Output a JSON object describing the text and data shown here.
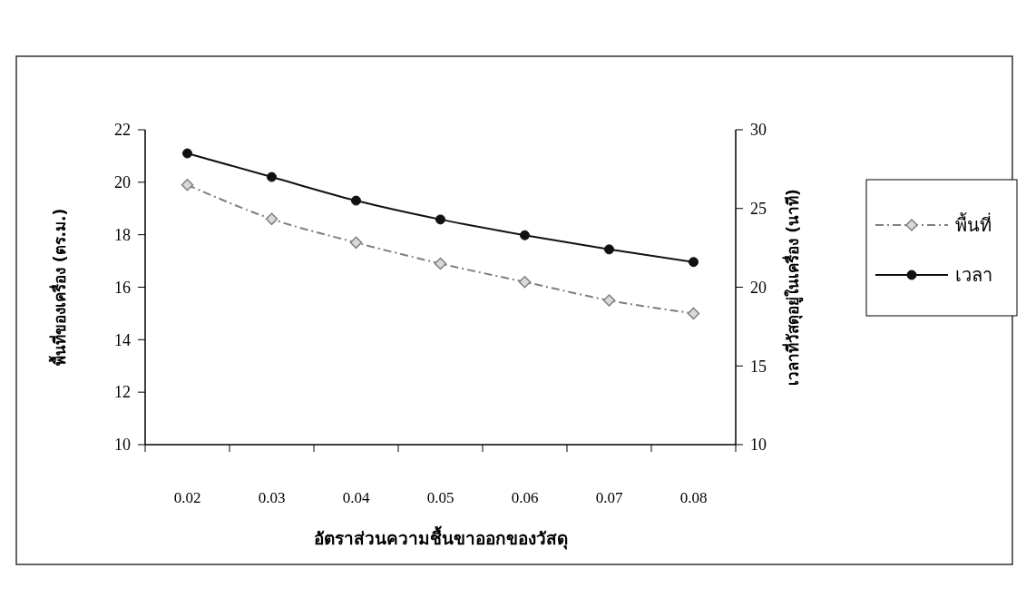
{
  "chart_data": {
    "type": "line",
    "categories": [
      "0.02",
      "0.03",
      "0.04",
      "0.05",
      "0.06",
      "0.07",
      "0.08"
    ],
    "xlabel": "อัตราส่วนความชื้นขาออกของวัสดุ",
    "ylabel": "พื้นที่ของเครื่อง (ตร.ม.)",
    "y2label": "เวลาที่วัสดุอยู่ในเครื่อง (นาที)",
    "series": [
      {
        "name": "พื้นที่",
        "color": "#7f7f7f",
        "marker": "diamond",
        "line_style": "dashed",
        "values": [
          19.9,
          18.6,
          17.7,
          16.9,
          16.2,
          15.5,
          15.0
        ]
      },
      {
        "name": "เวลา",
        "color": "#111111",
        "marker": "circle",
        "line_style": "solid",
        "axis": "y2",
        "values": [
          28.5,
          27.0,
          25.5,
          24.3,
          23.3,
          22.4,
          21.6
        ]
      }
    ],
    "ylim": [
      10,
      22
    ],
    "yticks": [
      10,
      12,
      14,
      16,
      18,
      20,
      22
    ],
    "y2lim": [
      10,
      30
    ],
    "y2ticks": [
      10,
      15,
      20,
      25,
      30
    ],
    "grid": false,
    "legend": "right"
  }
}
